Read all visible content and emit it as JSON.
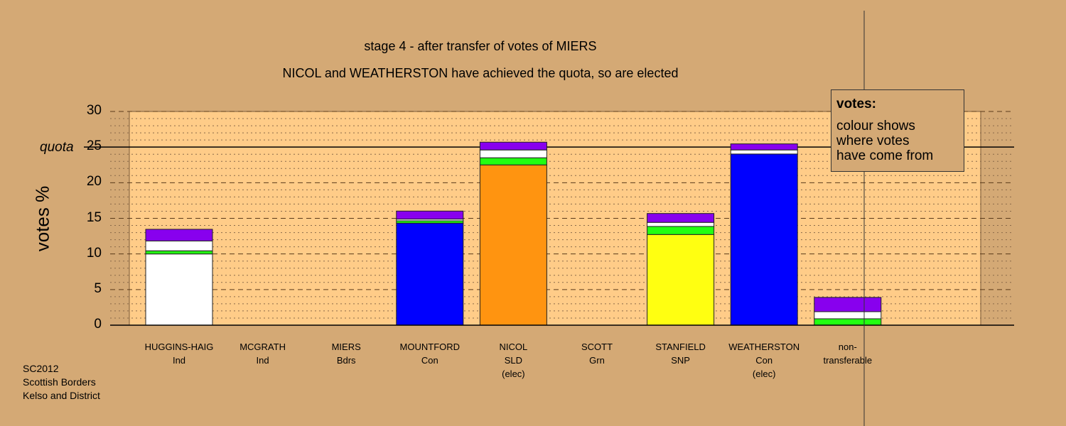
{
  "chart_data": {
    "type": "bar",
    "stacked": true,
    "title": "stage 4 - after transfer of votes of MIERS",
    "subtitle": "NICOL and WEATHERSTON have achieved the quota, so are elected",
    "ylabel": "votes %",
    "ylim": [
      0,
      30
    ],
    "yticks": [
      "0",
      "5",
      "10",
      "15",
      "20",
      "25",
      "30"
    ],
    "quota": 25,
    "quota_label": "quota",
    "grid": "dashed major every 5, dotted minor every 1",
    "categories": [
      {
        "name": "HUGGINS-HAIG",
        "party": "Ind",
        "note": ""
      },
      {
        "name": "MCGRATH",
        "party": "Ind",
        "note": ""
      },
      {
        "name": "MIERS",
        "party": "Bdrs",
        "note": ""
      },
      {
        "name": "MOUNTFORD",
        "party": "Con",
        "note": ""
      },
      {
        "name": "NICOL",
        "party": "SLD",
        "note": "(elec)"
      },
      {
        "name": "SCOTT",
        "party": "Grn",
        "note": ""
      },
      {
        "name": "STANFIELD",
        "party": "SNP",
        "note": ""
      },
      {
        "name": "WEATHERSTON",
        "party": "Con",
        "note": "(elec)"
      },
      {
        "name": "non-",
        "party": "transferable",
        "note": ""
      }
    ],
    "bars": [
      {
        "segments": [
          {
            "color": "#ffffff",
            "value": 10.0
          },
          {
            "color": "#22ff11",
            "value": 0.44
          },
          {
            "color": "#ffffff",
            "value": 1.39
          },
          {
            "color": "#8800ee",
            "value": 1.63
          }
        ]
      },
      {
        "segments": []
      },
      {
        "segments": []
      },
      {
        "segments": [
          {
            "color": "#0000ff",
            "value": 14.33
          },
          {
            "color": "#22ff11",
            "value": 0.32
          },
          {
            "color": "#ffffff",
            "value": 0.24
          },
          {
            "color": "#8800ee",
            "value": 1.13
          }
        ]
      },
      {
        "segments": [
          {
            "color": "#ff9410",
            "value": 22.5
          },
          {
            "color": "#22ff11",
            "value": 1.0
          },
          {
            "color": "#ffffff",
            "value": 1.1
          },
          {
            "color": "#8800ee",
            "value": 1.09
          }
        ]
      },
      {
        "segments": []
      },
      {
        "segments": [
          {
            "color": "#ffff11",
            "value": 12.73
          },
          {
            "color": "#22ff11",
            "value": 1.13
          },
          {
            "color": "#ffffff",
            "value": 0.57
          },
          {
            "color": "#8800ee",
            "value": 1.25
          }
        ]
      },
      {
        "segments": [
          {
            "color": "#0000ff",
            "value": 24.03
          },
          {
            "color": "#ffffff",
            "value": 0.57
          },
          {
            "color": "#8800ee",
            "value": 0.85
          }
        ]
      },
      {
        "segments": [
          {
            "color": "#22ff11",
            "value": 0.9
          },
          {
            "color": "#ffffff",
            "value": 1.0
          },
          {
            "color": "#8800ee",
            "value": 2.0
          }
        ]
      }
    ],
    "legend": {
      "heading": "votes:",
      "lines": [
        "colour shows",
        "where votes",
        "have come from"
      ],
      "placement": "top-right"
    }
  },
  "source": [
    "SC2012",
    "Scottish Borders",
    "Kelso and District"
  ]
}
